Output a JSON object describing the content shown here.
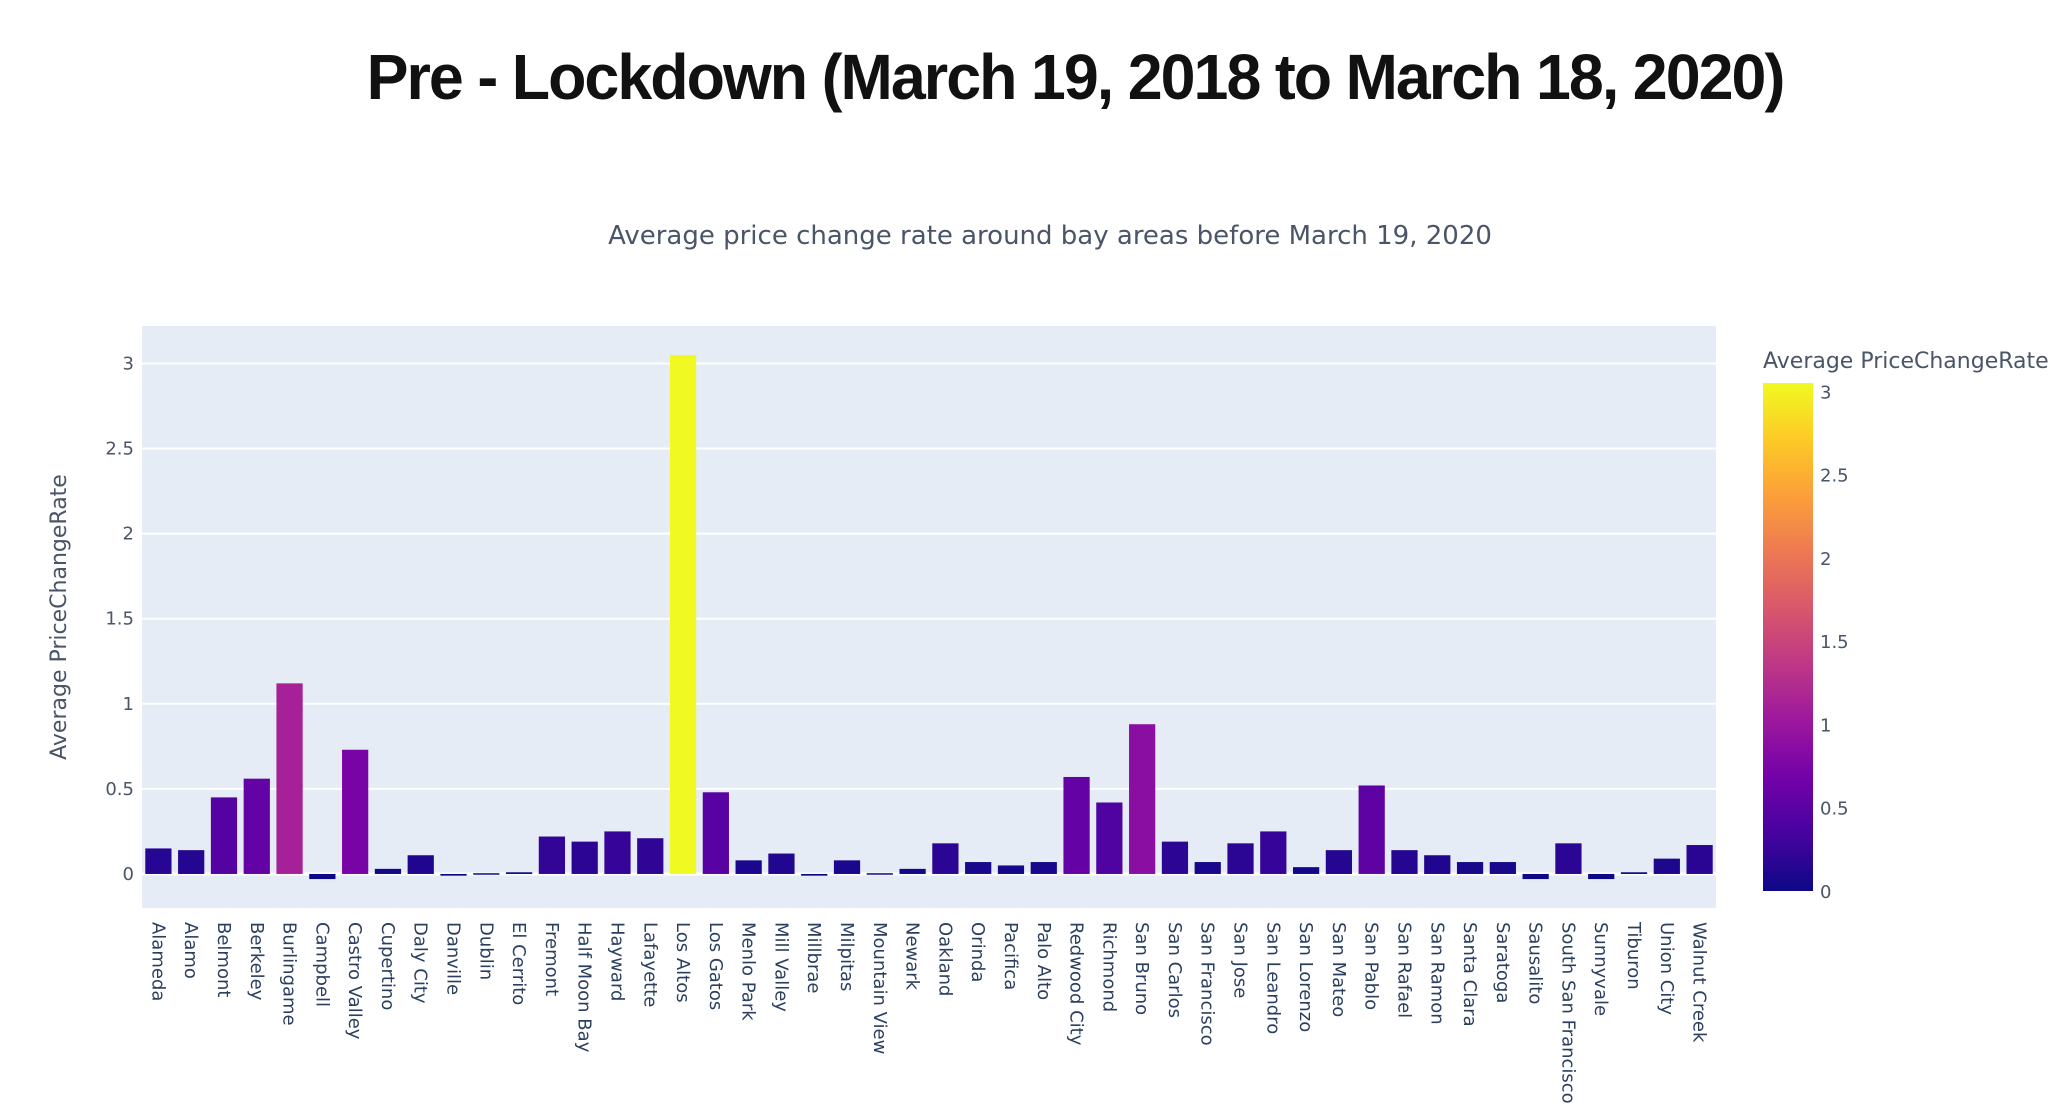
{
  "page": {
    "headline": "Pre - Lockdown (March 19, 2018 to March 18, 2020)"
  },
  "chart_data": {
    "type": "bar",
    "title": "Average price change rate around bay areas before March 19, 2020",
    "xlabel": "",
    "ylabel": "Average PriceChangeRate",
    "ylim": [
      -0.2,
      3.22
    ],
    "yticks": [
      0,
      0.5,
      1,
      1.5,
      2,
      2.5,
      3
    ],
    "ytick_labels": [
      "0",
      "0.5",
      "1",
      "1.5",
      "2",
      "2.5",
      "3"
    ],
    "grid": true,
    "colorbar": {
      "title": "Average PriceChangeRate",
      "range": [
        0,
        3.05
      ],
      "ticks": [
        "0",
        "0.5",
        "1",
        "1.5",
        "2",
        "2.5",
        "3"
      ],
      "tick_values": [
        0,
        0.5,
        1,
        1.5,
        2,
        2.5,
        3
      ],
      "colors": [
        "#0d0887",
        "#46039f",
        "#7201a8",
        "#9c179e",
        "#bd3786",
        "#d8576b",
        "#ed7953",
        "#fb9f3a",
        "#fdca26",
        "#f0f921"
      ],
      "placement": "right"
    },
    "categories": [
      "Alameda",
      "Alamo",
      "Belmont",
      "Berkeley",
      "Burlingame",
      "Campbell",
      "Castro Valley",
      "Cupertino",
      "Daly City",
      "Danville",
      "Dublin",
      "El Cerrito",
      "Fremont",
      "Half Moon Bay",
      "Hayward",
      "Lafayette",
      "Los Altos",
      "Los Gatos",
      "Menlo Park",
      "Mill Valley",
      "Millbrae",
      "Milpitas",
      "Mountain View",
      "Newark",
      "Oakland",
      "Orinda",
      "Pacifica",
      "Palo Alto",
      "Redwood City",
      "Richmond",
      "San Bruno",
      "San Carlos",
      "San Francisco",
      "San Jose",
      "San Leandro",
      "San Lorenzo",
      "San Mateo",
      "San Pablo",
      "San Rafael",
      "San Ramon",
      "Santa Clara",
      "Saratoga",
      "Sausalito",
      "South San Francisco",
      "Sunnyvale",
      "Tiburon",
      "Union City",
      "Walnut Creek"
    ],
    "values": [
      0.15,
      0.14,
      0.45,
      0.56,
      1.12,
      -0.03,
      0.73,
      0.03,
      0.11,
      -0.01,
      0.0,
      0.01,
      0.22,
      0.19,
      0.25,
      0.21,
      3.05,
      0.48,
      0.08,
      0.12,
      -0.01,
      0.08,
      0.0,
      0.03,
      0.18,
      0.07,
      0.05,
      0.07,
      0.57,
      0.42,
      0.88,
      0.19,
      0.07,
      0.18,
      0.25,
      0.04,
      0.14,
      0.52,
      0.14,
      0.11,
      0.07,
      0.07,
      -0.03,
      0.18,
      -0.03,
      0.01,
      0.09,
      0.17
    ]
  }
}
